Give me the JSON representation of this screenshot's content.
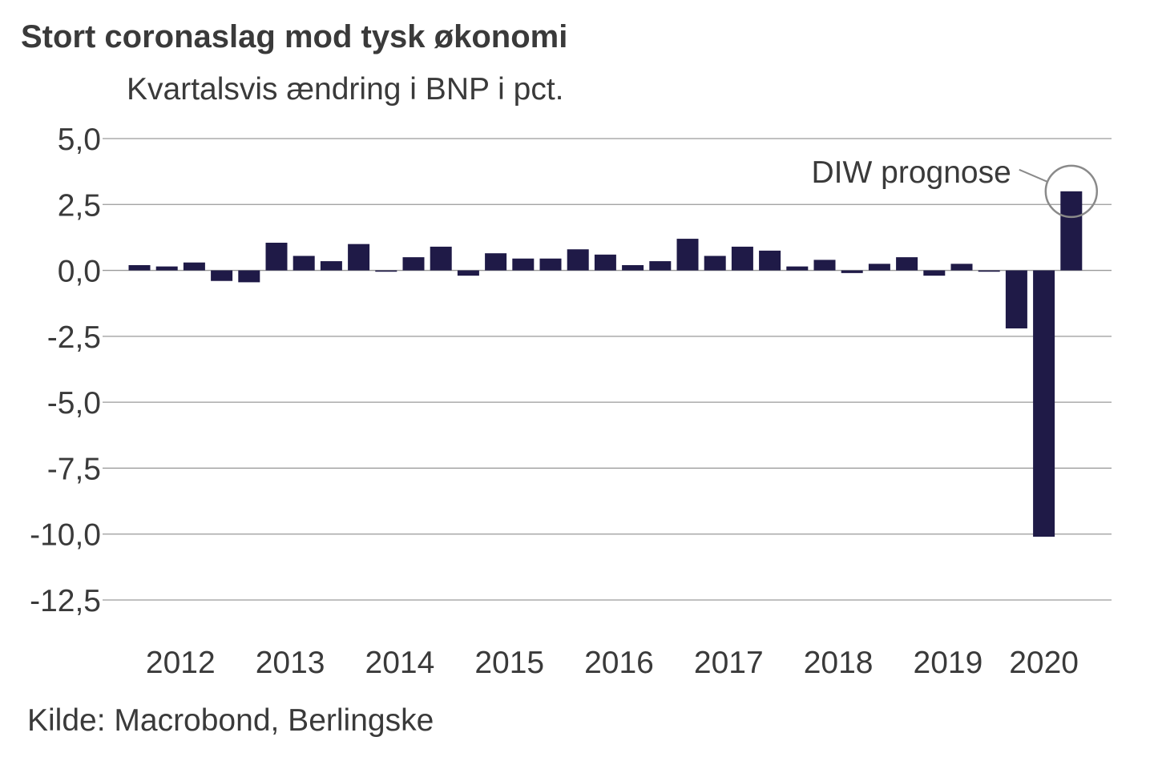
{
  "chart_data": {
    "type": "bar",
    "title": "Stort coronaslag mod tysk økonomi",
    "subtitle": "Kvartalsvis ændring i BNP i pct.",
    "source": "Kilde: Macrobond, Berlingske",
    "xlabel": "",
    "ylabel": "",
    "ylim": [
      -12.5,
      5.0
    ],
    "yticks": [
      "5,0",
      "2,5",
      "0,0",
      "-2,5",
      "-5,0",
      "-7,5",
      "-10,0",
      "-12,5"
    ],
    "ytick_values": [
      5.0,
      2.5,
      0.0,
      -2.5,
      -5.0,
      -7.5,
      -10.0,
      -12.5
    ],
    "year_labels": [
      "2012",
      "2013",
      "2014",
      "2015",
      "2016",
      "2017",
      "2018",
      "2019",
      "2020"
    ],
    "categories": [
      "2012 Q1",
      "2012 Q2",
      "2012 Q3",
      "2012 Q4",
      "2013 Q1",
      "2013 Q2",
      "2013 Q3",
      "2013 Q4",
      "2014 Q1",
      "2014 Q2",
      "2014 Q3",
      "2014 Q4",
      "2015 Q1",
      "2015 Q2",
      "2015 Q3",
      "2015 Q4",
      "2016 Q1",
      "2016 Q2",
      "2016 Q3",
      "2016 Q4",
      "2017 Q1",
      "2017 Q2",
      "2017 Q3",
      "2017 Q4",
      "2018 Q1",
      "2018 Q2",
      "2018 Q3",
      "2018 Q4",
      "2019 Q1",
      "2019 Q2",
      "2019 Q3",
      "2019 Q4",
      "2020 Q1",
      "2020 Q2",
      "2020 Q3"
    ],
    "values": [
      0.2,
      0.15,
      0.3,
      -0.4,
      -0.45,
      1.05,
      0.55,
      0.35,
      1.0,
      -0.05,
      0.5,
      0.9,
      -0.2,
      0.65,
      0.45,
      0.45,
      0.8,
      0.6,
      0.2,
      0.35,
      1.2,
      0.55,
      0.9,
      0.75,
      0.15,
      0.4,
      -0.1,
      0.25,
      0.5,
      -0.2,
      0.25,
      -0.05,
      -2.2,
      -10.1,
      3.0
    ],
    "annotation": {
      "text": "DIW prognose",
      "target_category": "2020 Q3"
    },
    "colors": {
      "bar": "#1f1a47",
      "grid": "#9a9a9a",
      "circle": "#8a8a8a"
    },
    "grid": true,
    "legend": "none"
  }
}
